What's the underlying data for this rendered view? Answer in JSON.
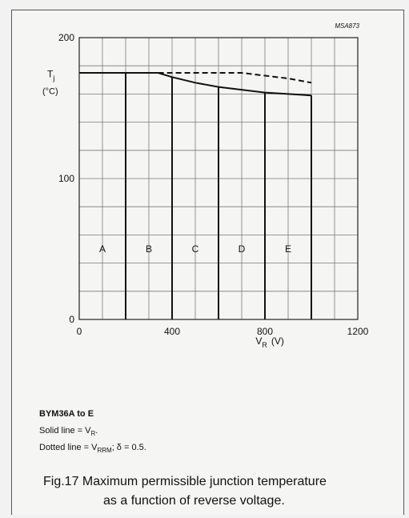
{
  "chart_data": {
    "type": "line",
    "code": "MSA873",
    "xlabel_main": "V",
    "xlabel_sub": "R",
    "xlabel_unit": "(V)",
    "ylabel_main": "T",
    "ylabel_sub": "j",
    "ylabel_unit": "(°C)",
    "xlim": [
      0,
      1200
    ],
    "ylim": [
      0,
      200
    ],
    "x_ticks": [
      {
        "value": 0,
        "label": "0"
      },
      {
        "value": 400,
        "label": "400"
      },
      {
        "value": 800,
        "label": "800"
      },
      {
        "value": 1200,
        "label": "1200"
      }
    ],
    "y_ticks": [
      {
        "value": 0,
        "label": "0"
      },
      {
        "value": 100,
        "label": "100"
      },
      {
        "value": 200,
        "label": "200"
      }
    ],
    "x_grid_step": 100,
    "y_grid_step": 20,
    "grid": true,
    "series": [
      {
        "style": "solid",
        "x": [
          0,
          340,
          400,
          500,
          600,
          700,
          800,
          900,
          1000
        ],
        "y": [
          175,
          175,
          172,
          168,
          165,
          163,
          161,
          160,
          159
        ]
      },
      {
        "style": "dashed",
        "x": [
          340,
          400,
          500,
          600,
          700,
          800,
          900,
          1000
        ],
        "y": [
          175,
          175,
          175,
          175,
          175,
          173,
          171,
          168
        ]
      }
    ],
    "regions": [
      {
        "label": "A",
        "x_end": 200
      },
      {
        "label": "B",
        "x_end": 400
      },
      {
        "label": "C",
        "x_end": 600
      },
      {
        "label": "D",
        "x_end": 800
      },
      {
        "label": "E",
        "x_end": 1000
      }
    ],
    "region_label_y": 50
  },
  "notes": {
    "product": "BYM36A to E",
    "solid_prefix": "Solid line = V",
    "solid_sub": "R",
    "solid_suffix": ".",
    "dotted_prefix": "Dotted line = V",
    "dotted_sub": "RRM",
    "dotted_suffix": "; δ = 0.5."
  },
  "caption": {
    "line1": "Fig.17  Maximum permissible junction temperature",
    "line2": "as a function of reverse voltage."
  }
}
